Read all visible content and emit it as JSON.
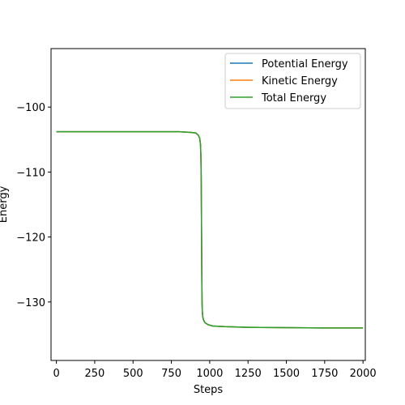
{
  "chart_data": {
    "type": "line",
    "xlabel": "Steps",
    "ylabel": "Energy",
    "xlim": [
      -35,
      2015
    ],
    "ylim": [
      -139,
      -91
    ],
    "xticks": [
      0,
      250,
      500,
      750,
      1000,
      1250,
      1500,
      1750,
      2000
    ],
    "yticks": [
      -100,
      -110,
      -120,
      -130
    ],
    "grid": false,
    "legend_position": "top-right",
    "series": [
      {
        "name": "Potential Energy",
        "color": "#1f77b4",
        "x": [
          0,
          200,
          400,
          600,
          800,
          880,
          910,
          925,
          935,
          940,
          943,
          945,
          946,
          947,
          948,
          949,
          950,
          952,
          955,
          960,
          970,
          990,
          1020,
          1100,
          1250,
          1500,
          1750,
          2000
        ],
        "y": [
          -103.8,
          -103.8,
          -103.8,
          -103.8,
          -103.8,
          -103.9,
          -104.0,
          -104.3,
          -104.8,
          -105.8,
          -108.0,
          -112.0,
          -116.0,
          -120.0,
          -124.0,
          -127.5,
          -130.0,
          -131.5,
          -132.3,
          -132.8,
          -133.2,
          -133.5,
          -133.7,
          -133.8,
          -133.9,
          -133.95,
          -134.0,
          -134.0
        ]
      },
      {
        "name": "Kinetic Energy",
        "color": "#ff7f0e",
        "x": [
          0,
          200,
          400,
          600,
          800,
          880,
          910,
          925,
          935,
          940,
          943,
          945,
          946,
          947,
          948,
          949,
          950,
          952,
          955,
          960,
          970,
          990,
          1020,
          1100,
          1250,
          1500,
          1750,
          2000
        ],
        "y": [
          -103.8,
          -103.8,
          -103.8,
          -103.8,
          -103.8,
          -103.9,
          -104.0,
          -104.3,
          -104.8,
          -105.8,
          -108.0,
          -112.0,
          -116.0,
          -120.0,
          -124.0,
          -127.5,
          -130.0,
          -131.5,
          -132.3,
          -132.8,
          -133.2,
          -133.5,
          -133.7,
          -133.8,
          -133.9,
          -133.95,
          -134.0,
          -134.0
        ]
      },
      {
        "name": "Total Energy",
        "color": "#2ca02c",
        "x": [
          0,
          200,
          400,
          600,
          800,
          880,
          910,
          925,
          935,
          940,
          943,
          945,
          946,
          947,
          948,
          949,
          950,
          952,
          955,
          960,
          970,
          990,
          1020,
          1100,
          1250,
          1500,
          1750,
          2000
        ],
        "y": [
          -103.8,
          -103.8,
          -103.8,
          -103.8,
          -103.8,
          -103.9,
          -104.0,
          -104.3,
          -104.8,
          -105.8,
          -108.0,
          -112.0,
          -116.0,
          -120.0,
          -124.0,
          -127.5,
          -130.0,
          -131.5,
          -132.3,
          -132.8,
          -133.2,
          -133.5,
          -133.7,
          -133.8,
          -133.9,
          -133.95,
          -134.0,
          -134.0
        ]
      }
    ]
  }
}
